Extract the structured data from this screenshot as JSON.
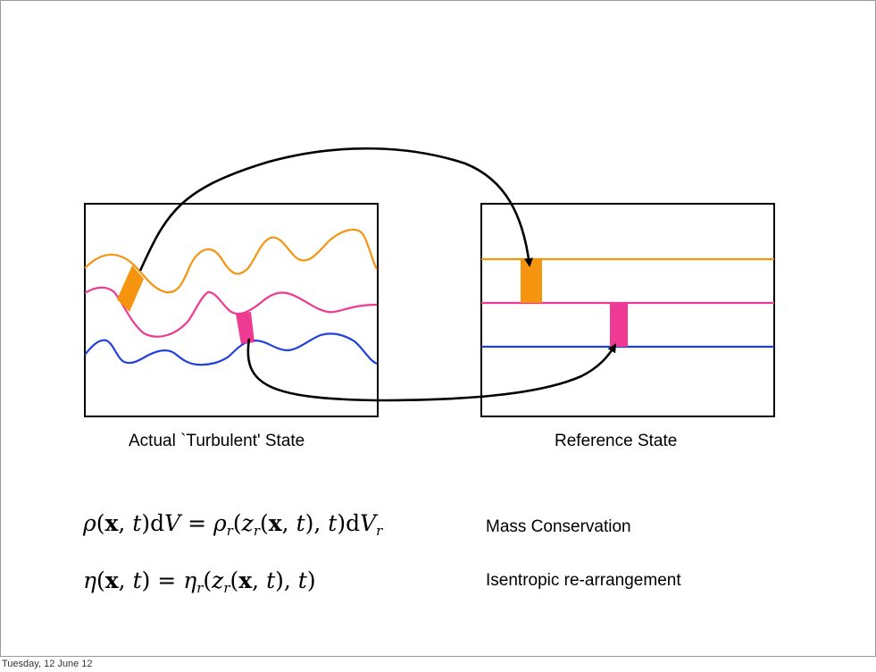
{
  "panels": {
    "actual_caption": "Actual `Turbulent' State",
    "reference_caption": "Reference State"
  },
  "equations": [
    {
      "label": "Mass Conservation"
    },
    {
      "label": "Isentropic re-arrangement"
    }
  ],
  "footer": {
    "date": "Tuesday, 12 June 12"
  },
  "colors": {
    "orange": "#f5940f",
    "pink": "#ee3a93",
    "blue": "#1f3fe0",
    "arrow": "#000000",
    "frame": "#000000"
  }
}
